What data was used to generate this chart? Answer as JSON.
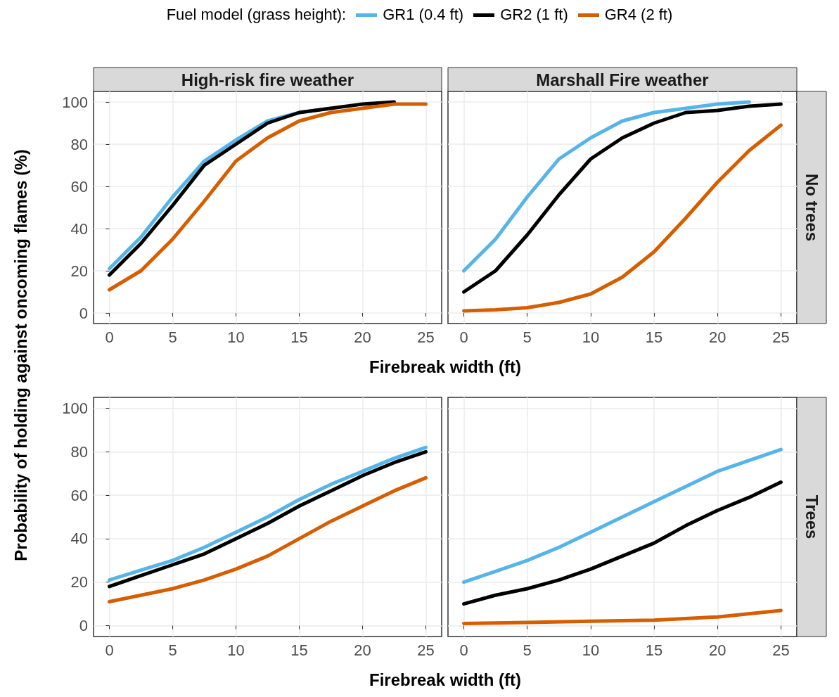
{
  "chart_data": [
    {
      "type": "line",
      "title": "High-risk fire weather",
      "xlabel": "Firebreak width (ft)",
      "ylabel": "Probability of holding against oncoming flames (%)",
      "legend_title": "Fuel model (grass height):",
      "legend": "top",
      "grid": true,
      "xlim": [
        -1.25,
        26.25
      ],
      "ylim": [
        -5,
        105
      ],
      "xticks": [
        0,
        5,
        10,
        15,
        20,
        25
      ],
      "yticks": [
        0,
        20,
        40,
        60,
        80,
        100
      ],
      "x": [
        0,
        2.5,
        5,
        7.5,
        10,
        12.5,
        15,
        17.5,
        20,
        22.5,
        25
      ],
      "series": [
        {
          "name": "GR1 (0.4 ft)",
          "color": "#56b4e9",
          "x": [
            0,
            2.5,
            5,
            7.5,
            10,
            12.5,
            15,
            17.5
          ],
          "values": [
            21,
            36,
            55,
            72,
            82,
            91,
            95,
            97
          ]
        },
        {
          "name": "GR2 (1 ft)",
          "color": "#000000",
          "x": [
            0,
            2.5,
            5,
            7.5,
            10,
            12.5,
            15,
            17.5,
            20,
            22.5
          ],
          "values": [
            18,
            33,
            51,
            70,
            80,
            90,
            95,
            97,
            99,
            100
          ]
        },
        {
          "name": "GR4 (2 ft)",
          "color": "#d55e00",
          "values": [
            11,
            20,
            35,
            53,
            72,
            83,
            91,
            95,
            97,
            99,
            99
          ]
        }
      ]
    },
    {
      "type": "line",
      "title": "Marshall Fire weather",
      "annotations": [
        "No trees"
      ],
      "grid": true,
      "tick_labels": "x",
      "xlim": [
        -1.25,
        26.25
      ],
      "ylim": [
        -5,
        105
      ],
      "xticks": [
        0,
        5,
        10,
        15,
        20,
        25
      ],
      "yticks": [
        0,
        20,
        40,
        60,
        80,
        100
      ],
      "x": [
        0,
        2.5,
        5,
        7.5,
        10,
        12.5,
        15,
        17.5,
        20,
        22.5,
        25
      ],
      "series": [
        {
          "color": "#56b4e9",
          "x": [
            0,
            2.5,
            5,
            7.5,
            10,
            12.5,
            15,
            17.5,
            20,
            22.5
          ],
          "values": [
            20,
            35,
            55,
            73,
            83,
            91,
            95,
            97,
            99,
            100
          ]
        },
        {
          "color": "#000000",
          "values": [
            10,
            20,
            37,
            56,
            73,
            83,
            90,
            95,
            96,
            98,
            99
          ]
        },
        {
          "color": "#d55e00",
          "values": [
            1,
            1.5,
            2.5,
            5,
            9,
            17,
            29,
            45,
            62,
            77,
            89
          ]
        }
      ]
    },
    {
      "type": "line",
      "xlabel": "Firebreak width (ft)",
      "grid": true,
      "xlim": [
        -1.25,
        26.25
      ],
      "ylim": [
        -5,
        105
      ],
      "xticks": [
        0,
        5,
        10,
        15,
        20,
        25
      ],
      "yticks": [
        0,
        20,
        40,
        60,
        80,
        100
      ],
      "x": [
        0,
        2.5,
        5,
        7.5,
        10,
        12.5,
        15,
        17.5,
        20,
        22.5,
        25
      ],
      "series": [
        {
          "color": "#56b4e9",
          "values": [
            21,
            25.5,
            30,
            36,
            43,
            50,
            58,
            65,
            71,
            77,
            82
          ]
        },
        {
          "color": "#000000",
          "values": [
            18,
            23,
            28,
            33,
            40,
            47,
            55,
            62,
            69,
            75,
            80
          ]
        },
        {
          "color": "#d55e00",
          "values": [
            11,
            14,
            17,
            21,
            26,
            32,
            40,
            48,
            55,
            62,
            68
          ]
        }
      ]
    },
    {
      "type": "line",
      "annotations": [
        "Trees"
      ],
      "grid": true,
      "tick_labels": "x",
      "xlim": [
        -1.25,
        26.25
      ],
      "ylim": [
        -5,
        105
      ],
      "xticks": [
        0,
        5,
        10,
        15,
        20,
        25
      ],
      "yticks": [
        0,
        20,
        40,
        60,
        80,
        100
      ],
      "x": [
        0,
        2.5,
        5,
        7.5,
        10,
        12.5,
        15,
        17.5,
        20,
        22.5,
        25
      ],
      "series": [
        {
          "color": "#56b4e9",
          "values": [
            20,
            25,
            30,
            36,
            43,
            50,
            57,
            64,
            71,
            76,
            81
          ]
        },
        {
          "color": "#000000",
          "values": [
            10,
            14,
            17,
            21,
            26,
            32,
            38,
            46,
            53,
            59,
            66
          ]
        },
        {
          "color": "#d55e00",
          "x": [
            0,
            5,
            10,
            15,
            20,
            25
          ],
          "values": [
            1,
            1.5,
            2,
            2.5,
            4,
            7
          ]
        }
      ]
    }
  ]
}
